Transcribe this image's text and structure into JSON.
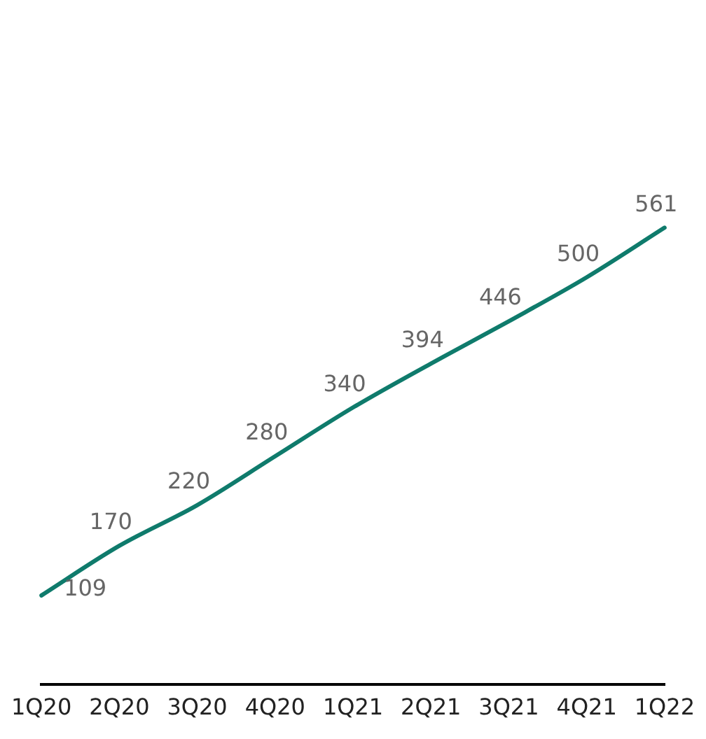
{
  "chart_data": {
    "type": "line",
    "categories": [
      "1Q20",
      "2Q20",
      "3Q20",
      "4Q20",
      "1Q21",
      "2Q21",
      "3Q21",
      "4Q21",
      "1Q22"
    ],
    "series": [
      {
        "color": "#0f7b6c",
        "values": [
          109,
          170,
          220,
          280,
          340,
          394,
          446,
          500,
          561
        ]
      }
    ],
    "tick_labels": "x",
    "data_labels": true,
    "grid": false,
    "legend": false,
    "marker": "none",
    "line_style": "solid"
  }
}
